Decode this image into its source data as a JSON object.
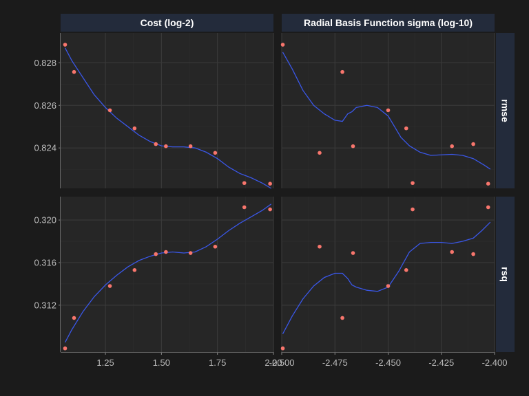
{
  "colors": {
    "background": "#1b1b1b",
    "panel": "#262626",
    "grid_major": "#3a3a3a",
    "grid_minor": "#2f2f2f",
    "strip": "#232b3b",
    "strip_text": "#ffffff",
    "tick_text": "#bdbdbd",
    "point": "#f8766d",
    "line": "#3a57e8"
  },
  "chart_data": {
    "type": "scatter",
    "smooth_line": true,
    "grid": true,
    "facets": {
      "columns": [
        {
          "key": "cost",
          "label": "Cost (log-2)",
          "xlim": [
            1.05,
            2.0
          ],
          "xticks": [
            1.25,
            1.5,
            1.75,
            2.0
          ],
          "xtick_labels": [
            "1.25",
            "1.50",
            "1.75",
            "2.00"
          ]
        },
        {
          "key": "sigma",
          "label": "Radial Basis Function sigma (log-10)",
          "xlim": [
            -2.5,
            -2.4
          ],
          "xticks": [
            -2.5,
            -2.475,
            -2.45,
            -2.425,
            -2.4
          ],
          "xtick_labels": [
            "-2.500",
            "-2.475",
            "-2.450",
            "-2.425",
            "-2.400"
          ]
        }
      ],
      "rows": [
        {
          "key": "rmse",
          "label": "rmse",
          "ylim": [
            0.8221,
            0.8294
          ],
          "yticks": [
            0.822,
            0.824,
            0.826,
            0.828
          ],
          "ytick_labels": [
            "0.822",
            "0.824",
            "0.826",
            "0.828"
          ]
        },
        {
          "key": "rsq",
          "label": "rsq",
          "ylim": [
            0.3076,
            0.3222
          ],
          "yticks": [
            0.312,
            0.316,
            0.32
          ],
          "ytick_labels": [
            "0.312",
            "0.316",
            "0.320"
          ]
        }
      ]
    },
    "panels": {
      "rmse_cost": {
        "points": [
          [
            1.07,
            0.82885
          ],
          [
            1.11,
            0.82757
          ],
          [
            1.27,
            0.82577
          ],
          [
            1.38,
            0.82492
          ],
          [
            1.475,
            0.82418
          ],
          [
            1.52,
            0.82408
          ],
          [
            1.63,
            0.82408
          ],
          [
            1.74,
            0.82377
          ],
          [
            1.87,
            0.82235
          ],
          [
            1.985,
            0.82232
          ]
        ],
        "smooth": [
          [
            1.07,
            0.8287
          ],
          [
            1.1,
            0.8281
          ],
          [
            1.15,
            0.8273
          ],
          [
            1.2,
            0.8265
          ],
          [
            1.25,
            0.8259
          ],
          [
            1.3,
            0.8254
          ],
          [
            1.35,
            0.825
          ],
          [
            1.4,
            0.8246
          ],
          [
            1.45,
            0.8243
          ],
          [
            1.5,
            0.8241
          ],
          [
            1.55,
            0.82405
          ],
          [
            1.6,
            0.82405
          ],
          [
            1.65,
            0.824
          ],
          [
            1.7,
            0.8238
          ],
          [
            1.75,
            0.8235
          ],
          [
            1.8,
            0.8231
          ],
          [
            1.85,
            0.8228
          ],
          [
            1.9,
            0.8226
          ],
          [
            1.95,
            0.82235
          ],
          [
            1.99,
            0.8221
          ]
        ]
      },
      "rmse_sigma": {
        "points": [
          [
            -2.4995,
            0.82885
          ],
          [
            -2.4822,
            0.82377
          ],
          [
            -2.4715,
            0.82757
          ],
          [
            -2.4665,
            0.82408
          ],
          [
            -2.45,
            0.82577
          ],
          [
            -2.4415,
            0.82492
          ],
          [
            -2.4385,
            0.82235
          ],
          [
            -2.42,
            0.82408
          ],
          [
            -2.41,
            0.82418
          ],
          [
            -2.403,
            0.82232
          ]
        ],
        "smooth": [
          [
            -2.4995,
            0.8285
          ],
          [
            -2.495,
            0.8277
          ],
          [
            -2.49,
            0.8267
          ],
          [
            -2.485,
            0.826
          ],
          [
            -2.48,
            0.8256
          ],
          [
            -2.475,
            0.8253
          ],
          [
            -2.4715,
            0.82525
          ],
          [
            -2.469,
            0.8256
          ],
          [
            -2.467,
            0.8257
          ],
          [
            -2.465,
            0.8259
          ],
          [
            -2.46,
            0.826
          ],
          [
            -2.455,
            0.8259
          ],
          [
            -2.45,
            0.8255
          ],
          [
            -2.447,
            0.825
          ],
          [
            -2.444,
            0.8245
          ],
          [
            -2.44,
            0.8241
          ],
          [
            -2.435,
            0.8238
          ],
          [
            -2.43,
            0.82365
          ],
          [
            -2.42,
            0.8237
          ],
          [
            -2.415,
            0.82365
          ],
          [
            -2.41,
            0.8235
          ],
          [
            -2.405,
            0.8232
          ],
          [
            -2.402,
            0.823
          ]
        ]
      },
      "rsq_cost": {
        "points": [
          [
            1.07,
            0.30794
          ],
          [
            1.11,
            0.3108
          ],
          [
            1.27,
            0.3138
          ],
          [
            1.38,
            0.3153
          ],
          [
            1.475,
            0.3168
          ],
          [
            1.52,
            0.317
          ],
          [
            1.63,
            0.3169
          ],
          [
            1.74,
            0.3175
          ],
          [
            1.87,
            0.3212
          ],
          [
            1.985,
            0.321
          ]
        ],
        "smooth": [
          [
            1.07,
            0.3085
          ],
          [
            1.1,
            0.3097
          ],
          [
            1.15,
            0.3114
          ],
          [
            1.2,
            0.3128
          ],
          [
            1.25,
            0.3139
          ],
          [
            1.3,
            0.3148
          ],
          [
            1.35,
            0.3156
          ],
          [
            1.4,
            0.3162
          ],
          [
            1.45,
            0.3166
          ],
          [
            1.5,
            0.3169
          ],
          [
            1.55,
            0.317
          ],
          [
            1.6,
            0.3169
          ],
          [
            1.65,
            0.317
          ],
          [
            1.7,
            0.3175
          ],
          [
            1.75,
            0.3182
          ],
          [
            1.8,
            0.319
          ],
          [
            1.85,
            0.3197
          ],
          [
            1.9,
            0.3203
          ],
          [
            1.95,
            0.3209
          ],
          [
            1.99,
            0.3215
          ]
        ]
      },
      "rsq_sigma": {
        "points": [
          [
            -2.4995,
            0.30794
          ],
          [
            -2.4822,
            0.3175
          ],
          [
            -2.4715,
            0.3108
          ],
          [
            -2.4665,
            0.3169
          ],
          [
            -2.45,
            0.3138
          ],
          [
            -2.4415,
            0.3153
          ],
          [
            -2.4385,
            0.321
          ],
          [
            -2.42,
            0.317
          ],
          [
            -2.41,
            0.3168
          ],
          [
            -2.403,
            0.3212
          ]
        ],
        "smooth": [
          [
            -2.4995,
            0.3093
          ],
          [
            -2.495,
            0.311
          ],
          [
            -2.49,
            0.3126
          ],
          [
            -2.485,
            0.3138
          ],
          [
            -2.48,
            0.3146
          ],
          [
            -2.475,
            0.315
          ],
          [
            -2.4715,
            0.315
          ],
          [
            -2.469,
            0.3145
          ],
          [
            -2.467,
            0.3139
          ],
          [
            -2.465,
            0.3137
          ],
          [
            -2.46,
            0.3134
          ],
          [
            -2.455,
            0.3133
          ],
          [
            -2.45,
            0.3137
          ],
          [
            -2.445,
            0.3152
          ],
          [
            -2.44,
            0.317
          ],
          [
            -2.435,
            0.3178
          ],
          [
            -2.43,
            0.3179
          ],
          [
            -2.425,
            0.3179
          ],
          [
            -2.42,
            0.3178
          ],
          [
            -2.415,
            0.318
          ],
          [
            -2.41,
            0.3183
          ],
          [
            -2.406,
            0.319
          ],
          [
            -2.402,
            0.3198
          ]
        ]
      }
    }
  }
}
